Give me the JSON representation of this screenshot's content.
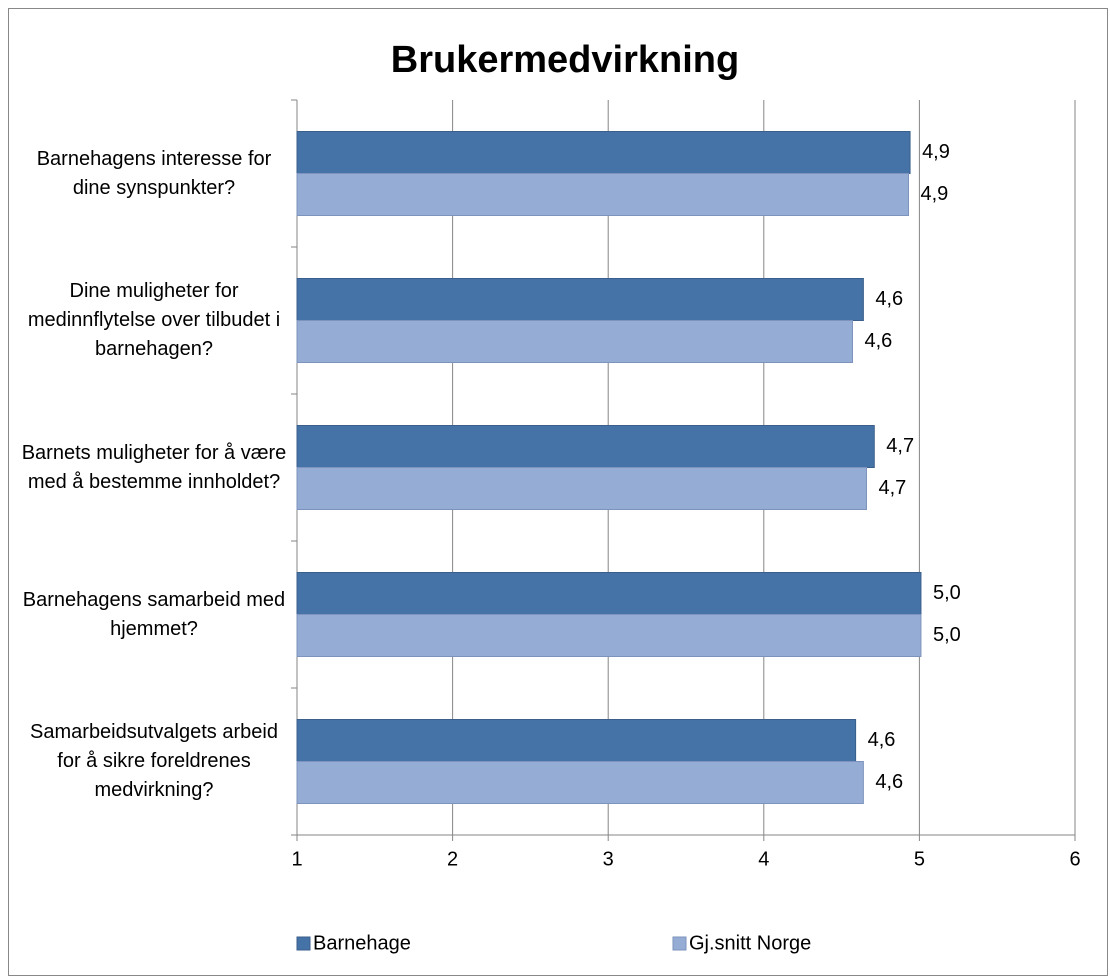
{
  "chart_data": {
    "type": "barh",
    "title": "Brukermedvirkning",
    "categories": [
      "Barnehagens interesse for dine synspunkter?",
      "Dine muligheter for medinnflytelse over tilbudet i barnehagen?",
      "Barnets muligheter for å være med å bestemme innholdet?",
      "Barnehagens samarbeid med hjemmet?",
      "Samarbeidsutvalgets arbeid for å sikre foreldrenes medvirkning?"
    ],
    "series": [
      {
        "name": "Barnehage",
        "color": "#4572a7",
        "values": [
          4.94,
          4.64,
          4.71,
          5.01,
          4.59
        ],
        "value_labels": [
          "4,9",
          "4,6",
          "4,7",
          "5,0",
          "4,6"
        ]
      },
      {
        "name": "Gj.snitt Norge",
        "color": "#95acd4",
        "values": [
          4.93,
          4.57,
          4.66,
          5.01,
          4.64
        ],
        "value_labels": [
          "4,9",
          "4,6",
          "4,7",
          "5,0",
          "4,6"
        ]
      }
    ],
    "xlim": [
      1,
      6
    ],
    "xticks": [
      1,
      2,
      3,
      4,
      5,
      6
    ],
    "grid": true,
    "legend": "bottom"
  }
}
